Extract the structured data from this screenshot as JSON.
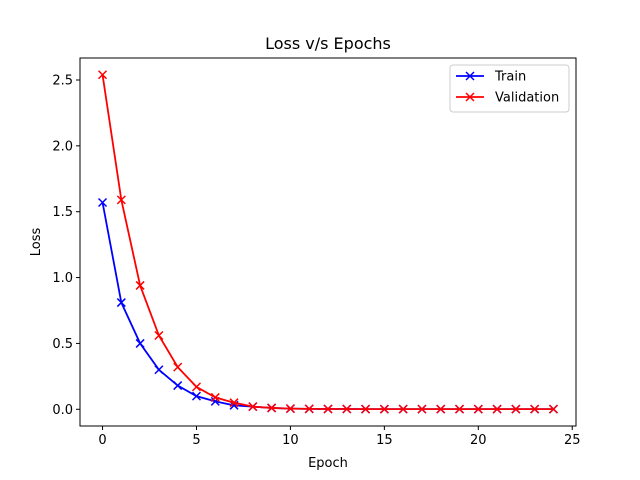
{
  "chart_data": {
    "type": "line",
    "title": "Loss v/s Epochs",
    "xlabel": "Epoch",
    "ylabel": "Loss",
    "xlim": [
      -1.2,
      25.2
    ],
    "ylim": [
      -0.127,
      2.667
    ],
    "xticks": [
      0,
      5,
      10,
      15,
      20,
      25
    ],
    "xtick_labels": [
      "0",
      "5",
      "10",
      "15",
      "20",
      "25"
    ],
    "yticks": [
      0.0,
      0.5,
      1.0,
      1.5,
      2.0,
      2.5
    ],
    "ytick_labels": [
      "0.0",
      "0.5",
      "1.0",
      "1.5",
      "2.0",
      "2.5"
    ],
    "grid": false,
    "legend_position": "top-right",
    "x": [
      0,
      1,
      2,
      3,
      4,
      5,
      6,
      7,
      8,
      9,
      10,
      11,
      12,
      13,
      14,
      15,
      16,
      17,
      18,
      19,
      20,
      21,
      22,
      23,
      24
    ],
    "series": [
      {
        "name": "Train",
        "color": "#0000ff",
        "marker": "x",
        "values": [
          1.57,
          0.81,
          0.5,
          0.3,
          0.18,
          0.1,
          0.06,
          0.03,
          0.02,
          0.01,
          0.005,
          0.003,
          0.002,
          0.002,
          0.001,
          0.001,
          0.001,
          0.001,
          0.001,
          0.001,
          0.001,
          0.001,
          0.001,
          0.001,
          0.001
        ]
      },
      {
        "name": "Validation",
        "color": "#ff0000",
        "marker": "x",
        "values": [
          2.54,
          1.59,
          0.94,
          0.56,
          0.32,
          0.17,
          0.09,
          0.05,
          0.02,
          0.01,
          0.005,
          0.003,
          0.002,
          0.002,
          0.001,
          0.001,
          0.001,
          0.001,
          0.001,
          0.001,
          0.001,
          0.001,
          0.001,
          0.001,
          0.001
        ]
      }
    ]
  }
}
